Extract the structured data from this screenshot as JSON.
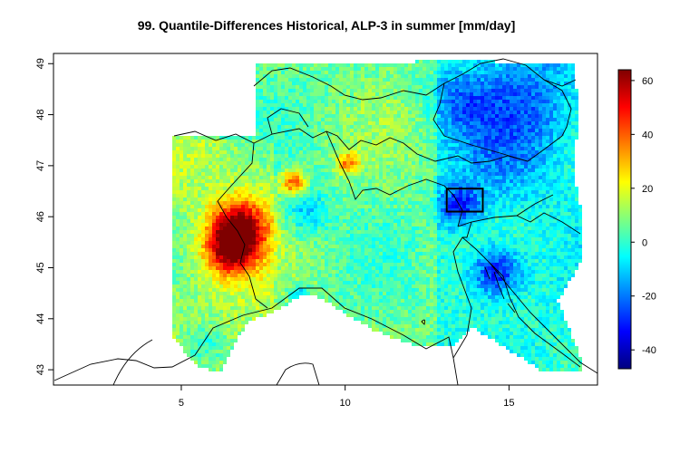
{
  "title": "99. Quantile-Differences Historical, ALP-3 in summer [mm/day]",
  "map": {
    "x_ticks": [
      5,
      10,
      15
    ],
    "y_ticks": [
      43,
      44,
      45,
      46,
      47,
      48,
      49
    ],
    "xlim": [
      1.1,
      17.7
    ],
    "ylim": [
      42.7,
      49.2
    ],
    "highlight_box": {
      "lon": [
        13.1,
        14.2
      ],
      "lat": [
        46.1,
        46.55
      ]
    }
  },
  "colorbar": {
    "ticks": [
      60,
      40,
      20,
      0,
      -20,
      -40
    ],
    "range": [
      -47,
      64
    ],
    "palette": [
      "#00007F",
      "#0000FF",
      "#007FFF",
      "#00FFFF",
      "#7FFF7F",
      "#FFFF00",
      "#FF7F00",
      "#FF0000",
      "#7F0000"
    ]
  }
}
